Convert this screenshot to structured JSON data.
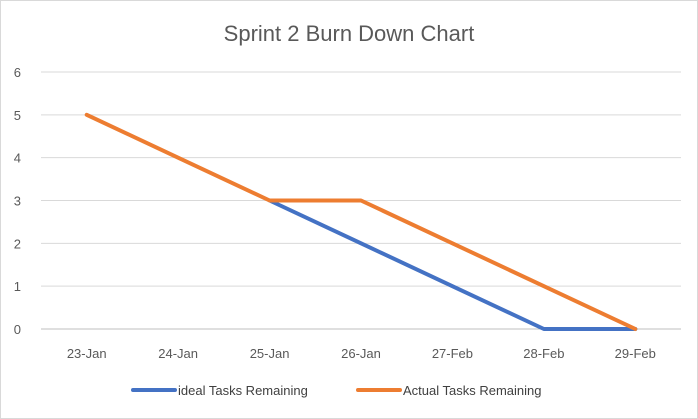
{
  "chart_data": {
    "type": "line",
    "title": "Sprint 2 Burn Down Chart",
    "xlabel": "",
    "ylabel": "",
    "categories": [
      "23-Jan",
      "24-Jan",
      "25-Jan",
      "26-Jan",
      "27-Feb",
      "28-Feb",
      "29-Feb"
    ],
    "ylim": [
      0,
      6
    ],
    "yticks": [
      0,
      1,
      2,
      3,
      4,
      5,
      6
    ],
    "grid": true,
    "legend_position": "bottom",
    "series": [
      {
        "name": "ideal Tasks Remaining",
        "color": "#4472C4",
        "values": [
          null,
          null,
          3,
          2,
          1,
          0,
          0
        ]
      },
      {
        "name": "Actual Tasks Remaining",
        "color": "#ED7D31",
        "values": [
          5,
          4,
          3,
          3,
          2,
          1,
          0
        ]
      }
    ]
  }
}
